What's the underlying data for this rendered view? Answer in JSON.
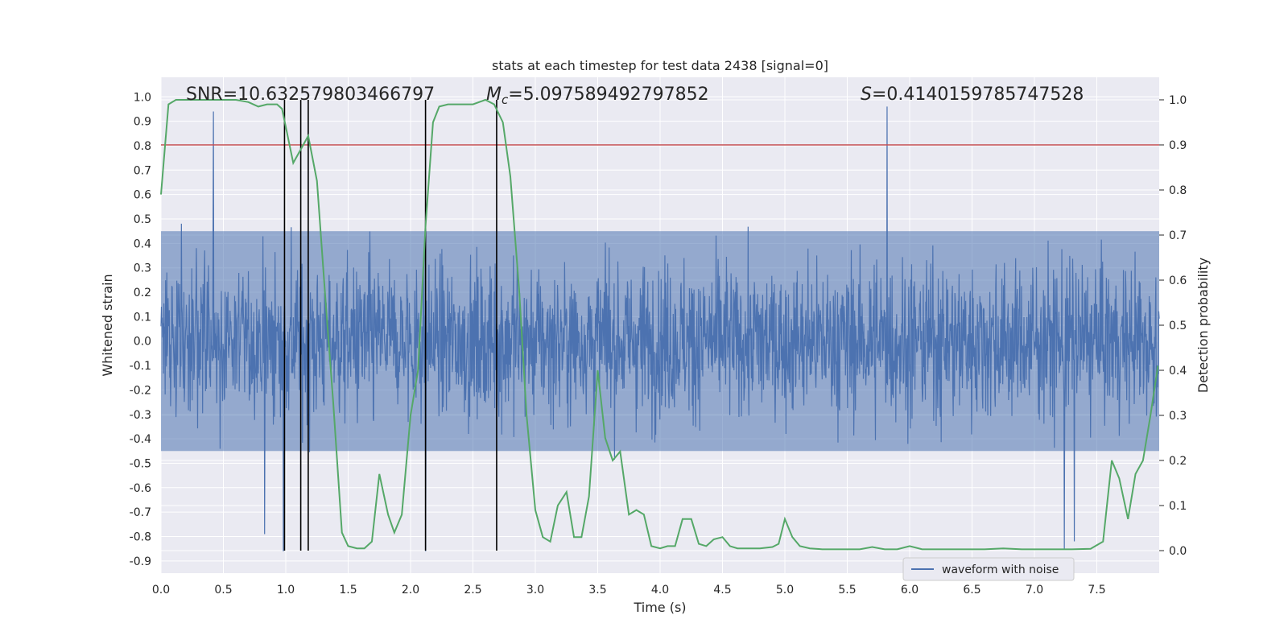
{
  "chart_data": {
    "type": "line",
    "title": "stats at each timestep for test data 2438 [signal=0]",
    "xlabel": "Time (s)",
    "ylabel_left": "Whitened strain",
    "ylabel_right": "Detection probability",
    "xlim": [
      0.0,
      8.0
    ],
    "ylim_left": [
      -0.95,
      1.08
    ],
    "ylim_right": [
      -0.05,
      1.05
    ],
    "x_ticks": [
      "0.0",
      "0.5",
      "1.0",
      "1.5",
      "2.0",
      "2.5",
      "3.0",
      "3.5",
      "4.0",
      "4.5",
      "5.0",
      "5.5",
      "6.0",
      "6.5",
      "7.0",
      "7.5"
    ],
    "y_ticks_left": [
      "1.0",
      "0.9",
      "0.8",
      "0.7",
      "0.6",
      "0.5",
      "0.4",
      "0.3",
      "0.2",
      "0.1",
      "0.0",
      "-0.1",
      "-0.2",
      "-0.3",
      "-0.4",
      "-0.5",
      "-0.6",
      "-0.7",
      "-0.8",
      "-0.9"
    ],
    "y_ticks_right": [
      "1.0",
      "0.9",
      "0.8",
      "0.7",
      "0.6",
      "0.5",
      "0.4",
      "0.3",
      "0.2",
      "0.1",
      "0.0"
    ],
    "annotations": {
      "snr": "SNR=10.632579803466797",
      "mc_symbol": "M",
      "mc_sub": "c",
      "mc_value": "=5.097589492797852",
      "s_symbol": "S",
      "s_value": "=0.4140159785747528"
    },
    "legend": {
      "label": "waveform with noise",
      "position": "lower-right"
    },
    "threshold_right": 0.9,
    "vertical_lines_x": [
      0.99,
      1.12,
      1.18,
      2.12,
      2.69
    ],
    "series": [
      {
        "name": "waveform with noise",
        "color": "#4c72b0",
        "render": "dense noisy strain, approx. 2400 samples over 0-8 s, mostly within ±0.45, spikes to ~0.97 and ~-0.86",
        "envelope_core": [
          -0.45,
          0.45
        ],
        "notable_spikes": [
          [
            0.42,
            0.94
          ],
          [
            5.82,
            0.96
          ],
          [
            0.98,
            -0.86
          ],
          [
            2.12,
            -0.86
          ],
          [
            7.24,
            -0.85
          ],
          [
            7.32,
            -0.82
          ],
          [
            0.83,
            -0.79
          ]
        ]
      },
      {
        "name": "",
        "color": "#55a868",
        "x": [
          0.0,
          0.06,
          0.12,
          0.2,
          0.3,
          0.4,
          0.5,
          0.6,
          0.7,
          0.78,
          0.85,
          0.93,
          0.97,
          1.0,
          1.06,
          1.12,
          1.18,
          1.25,
          1.32,
          1.38,
          1.45,
          1.5,
          1.57,
          1.63,
          1.69,
          1.75,
          1.82,
          1.87,
          1.93,
          2.0,
          2.06,
          2.12,
          2.18,
          2.23,
          2.3,
          2.38,
          2.5,
          2.6,
          2.67,
          2.74,
          2.8,
          2.87,
          2.93,
          3.0,
          3.06,
          3.12,
          3.18,
          3.25,
          3.31,
          3.37,
          3.43,
          3.5,
          3.56,
          3.62,
          3.68,
          3.75,
          3.81,
          3.87,
          3.93,
          4.0,
          4.06,
          4.12,
          4.18,
          4.25,
          4.31,
          4.37,
          4.43,
          4.5,
          4.56,
          4.62,
          4.7,
          4.8,
          4.9,
          4.95,
          5.0,
          5.06,
          5.12,
          5.2,
          5.3,
          5.45,
          5.6,
          5.7,
          5.8,
          5.9,
          6.0,
          6.1,
          6.2,
          6.3,
          6.45,
          6.6,
          6.75,
          6.9,
          7.1,
          7.3,
          7.45,
          7.55,
          7.62,
          7.68,
          7.75,
          7.81,
          7.87,
          7.93,
          7.99
        ],
        "values": [
          0.79,
          0.99,
          1.0,
          1.0,
          1.0,
          1.0,
          1.0,
          1.0,
          0.995,
          0.985,
          0.99,
          0.99,
          0.98,
          0.94,
          0.86,
          0.89,
          0.92,
          0.82,
          0.55,
          0.33,
          0.04,
          0.01,
          0.005,
          0.005,
          0.02,
          0.17,
          0.08,
          0.04,
          0.08,
          0.3,
          0.4,
          0.72,
          0.95,
          0.985,
          0.99,
          0.99,
          0.99,
          1.0,
          0.99,
          0.95,
          0.83,
          0.58,
          0.3,
          0.09,
          0.03,
          0.02,
          0.1,
          0.13,
          0.03,
          0.03,
          0.12,
          0.4,
          0.25,
          0.2,
          0.22,
          0.08,
          0.09,
          0.08,
          0.01,
          0.005,
          0.01,
          0.01,
          0.07,
          0.07,
          0.015,
          0.01,
          0.025,
          0.03,
          0.01,
          0.005,
          0.005,
          0.005,
          0.008,
          0.015,
          0.07,
          0.03,
          0.01,
          0.005,
          0.003,
          0.003,
          0.003,
          0.008,
          0.003,
          0.003,
          0.01,
          0.003,
          0.003,
          0.003,
          0.003,
          0.003,
          0.005,
          0.003,
          0.003,
          0.003,
          0.004,
          0.02,
          0.2,
          0.16,
          0.07,
          0.17,
          0.2,
          0.3,
          0.41
        ]
      }
    ]
  }
}
